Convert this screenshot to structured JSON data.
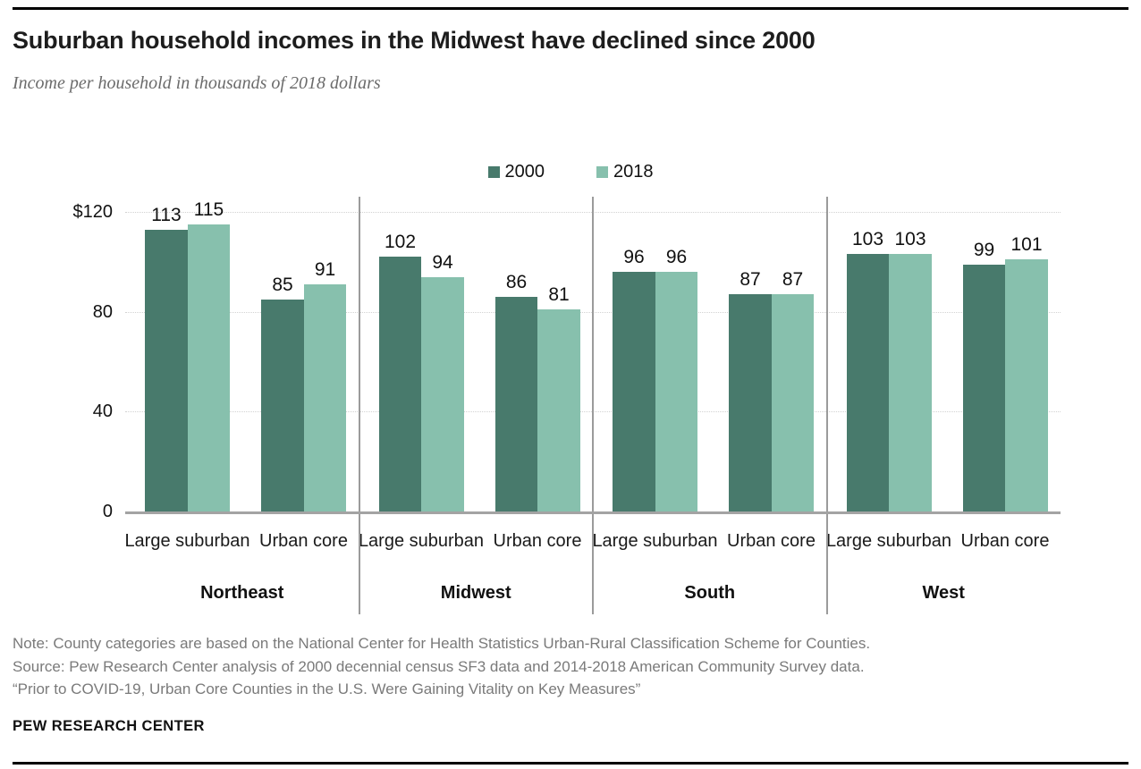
{
  "header": {
    "title": "Suburban household incomes in the Midwest have declined since 2000",
    "subtitle": "Income per household in thousands of 2018 dollars"
  },
  "chart_data": {
    "type": "bar",
    "title": "Suburban household incomes in the Midwest have declined since 2000",
    "subtitle": "Income per household in thousands of 2018 dollars",
    "xlabel": "",
    "ylabel": "",
    "ylim": [
      0,
      120
    ],
    "grid": "dotted-horizontal",
    "grid_values": [
      40,
      80,
      120
    ],
    "y_ticks": [
      {
        "value": 120,
        "label": "$120"
      },
      {
        "value": 80,
        "label": "80"
      },
      {
        "value": 40,
        "label": "40"
      },
      {
        "value": 0,
        "label": "0"
      }
    ],
    "legend_position": "top-center",
    "legend": [
      {
        "label": "2000",
        "color": "#487a6c"
      },
      {
        "label": "2018",
        "color": "#87c0ad"
      }
    ],
    "subcategories": [
      "Large suburban",
      "Urban core"
    ],
    "regions": [
      {
        "name": "Northeast",
        "groups": [
          {
            "label": "Large suburban",
            "values": [
              113,
              115
            ]
          },
          {
            "label": "Urban core",
            "values": [
              85,
              91
            ]
          }
        ]
      },
      {
        "name": "Midwest",
        "groups": [
          {
            "label": "Large suburban",
            "values": [
              102,
              94
            ]
          },
          {
            "label": "Urban core",
            "values": [
              86,
              81
            ]
          }
        ]
      },
      {
        "name": "South",
        "groups": [
          {
            "label": "Large suburban",
            "values": [
              96,
              96
            ]
          },
          {
            "label": "Urban core",
            "values": [
              87,
              87
            ]
          }
        ]
      },
      {
        "name": "West",
        "groups": [
          {
            "label": "Large suburban",
            "values": [
              103,
              103
            ]
          },
          {
            "label": "Urban core",
            "values": [
              99,
              101
            ]
          }
        ]
      }
    ]
  },
  "notes": {
    "note": "Note: County categories are based on the National Center for Health Statistics Urban-Rural Classification Scheme for Counties.",
    "source": "Source: Pew Research Center analysis of 2000 decennial census SF3 data and 2014-2018 American Community Survey data.",
    "quote": "“Prior to COVID-19, Urban Core Counties in the U.S. Were Gaining Vitality on Key Measures”"
  },
  "footer": {
    "brand": "PEW RESEARCH CENTER"
  },
  "colors": {
    "series_2000": "#487a6c",
    "series_2018": "#87c0ad",
    "baseline": "#a3a3a3",
    "divider": "#9b9b9b",
    "note_text": "#7a7a7a"
  }
}
